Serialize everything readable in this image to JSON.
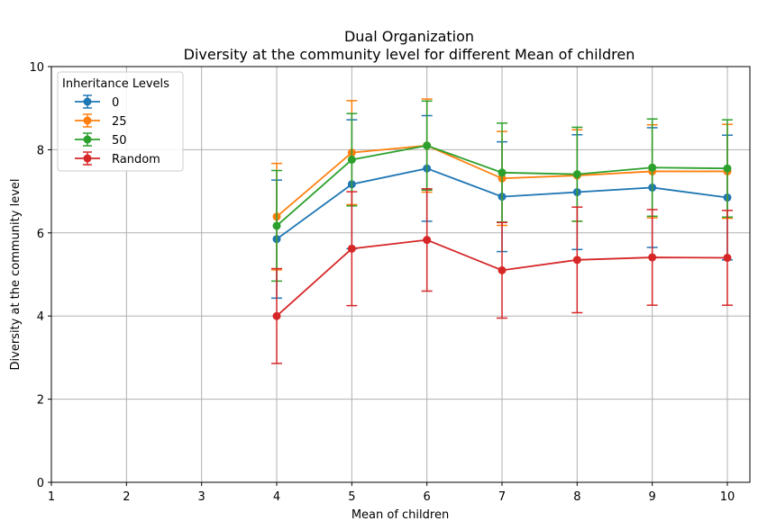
{
  "chart_data": {
    "type": "line",
    "title": "Dual Organization",
    "subtitle": "Diversity at the community level for different Mean of children",
    "xlabel": "Mean of children",
    "ylabel": "Diversity at the community level",
    "xlim": [
      1,
      10.3
    ],
    "ylim": [
      0,
      10
    ],
    "xticks": [
      1,
      2,
      3,
      4,
      5,
      6,
      7,
      8,
      9,
      10
    ],
    "yticks": [
      0,
      2,
      4,
      6,
      8,
      10
    ],
    "grid": true,
    "legend": {
      "title": "Inheritance Levels",
      "placement": "top-left"
    },
    "x": [
      4,
      5,
      6,
      7,
      8,
      9,
      10
    ],
    "series": [
      {
        "name": "0",
        "color": "#1f77b4",
        "values": [
          5.85,
          7.17,
          7.55,
          6.87,
          6.98,
          7.09,
          6.85
        ],
        "errors": [
          1.42,
          1.55,
          1.27,
          1.32,
          1.38,
          1.44,
          1.5
        ]
      },
      {
        "name": "25",
        "color": "#ff7f0e",
        "values": [
          6.39,
          7.93,
          8.1,
          7.31,
          7.38,
          7.48,
          7.48
        ],
        "errors": [
          1.28,
          1.25,
          1.12,
          1.13,
          1.1,
          1.12,
          1.13
        ]
      },
      {
        "name": "50",
        "color": "#2ca02c",
        "values": [
          6.17,
          7.76,
          8.1,
          7.45,
          7.41,
          7.57,
          7.55
        ],
        "errors": [
          1.33,
          1.11,
          1.07,
          1.19,
          1.13,
          1.17,
          1.17
        ]
      },
      {
        "name": "Random",
        "color": "#d62728",
        "values": [
          4.0,
          5.62,
          5.83,
          5.1,
          5.35,
          5.41,
          5.4
        ],
        "errors": [
          1.14,
          1.37,
          1.23,
          1.15,
          1.27,
          1.15,
          1.14
        ]
      }
    ]
  }
}
